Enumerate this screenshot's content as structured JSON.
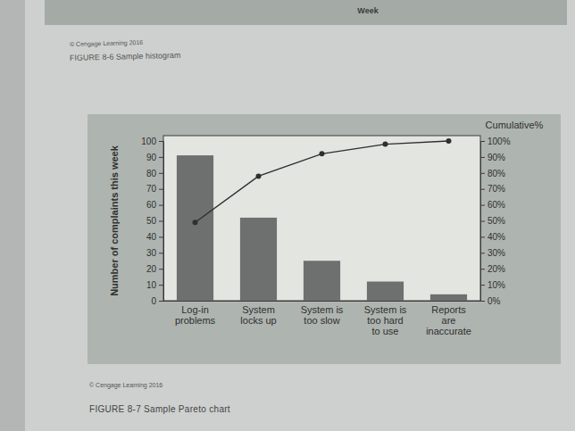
{
  "chart_data": {
    "type": "bar",
    "y_label": "Number of complaints this week",
    "y2_label": "Cumulative%",
    "categories": [
      "Log-in problems",
      "System locks up",
      "System is too slow",
      "System is too hard to use",
      "Reports are inaccurate"
    ],
    "series": [
      {
        "type": "bar",
        "color": "#6d706e",
        "values": [
          91,
          52,
          25,
          12,
          4
        ]
      },
      {
        "type": "line",
        "axis": "y2",
        "color": "#2e302f",
        "marker": "circle",
        "line_style": "solid",
        "values": [
          49,
          78,
          92,
          98,
          100
        ]
      }
    ],
    "ylim": [
      0,
      100
    ],
    "yticks": [
      0,
      10,
      20,
      30,
      40,
      50,
      60,
      70,
      80,
      90,
      100
    ],
    "y2lim": [
      0,
      100
    ],
    "y2ticks": [
      {
        "value": 0,
        "label": "0%"
      },
      {
        "value": 10,
        "label": "10%"
      },
      {
        "value": 20,
        "label": "20%"
      },
      {
        "value": 30,
        "label": "30%"
      },
      {
        "value": 40,
        "label": "40%"
      },
      {
        "value": 50,
        "label": "50%"
      },
      {
        "value": 60,
        "label": "60%"
      },
      {
        "value": 70,
        "label": "70%"
      },
      {
        "value": 80,
        "label": "80%"
      },
      {
        "value": 90,
        "label": "90%"
      },
      {
        "value": 100,
        "label": "100%"
      }
    ],
    "grid": false
  },
  "page": {
    "header_axis_label": "Week",
    "header_credit": "© Cengage Learning 2016",
    "header_caption": "FIGURE 8-6 Sample histogram",
    "credit": "© Cengage Learning 2016",
    "caption": "FIGURE 8-7 Sample Pareto chart"
  }
}
